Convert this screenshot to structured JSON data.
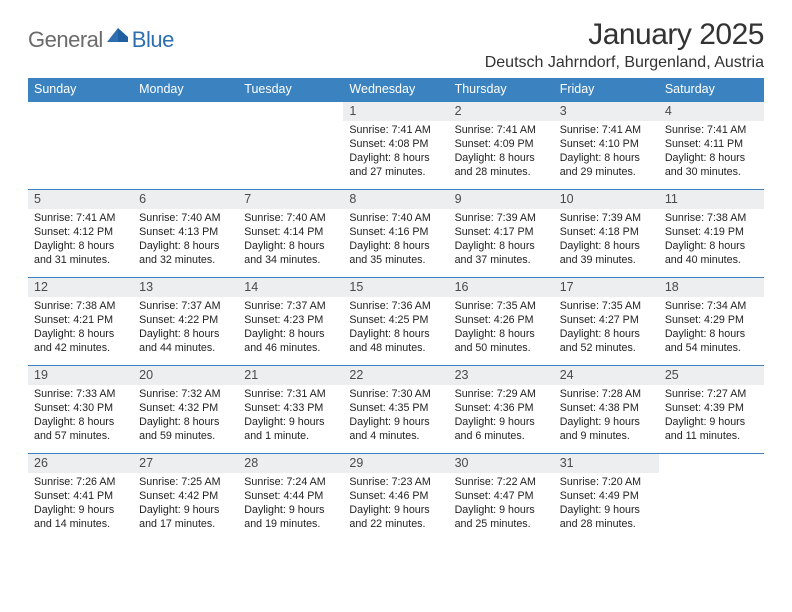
{
  "logo": {
    "word1": "General",
    "word2": "Blue"
  },
  "title": "January 2025",
  "location": "Deutsch Jahrndorf, Burgenland, Austria",
  "dow": [
    "Sunday",
    "Monday",
    "Tuesday",
    "Wednesday",
    "Thursday",
    "Friday",
    "Saturday"
  ],
  "colors": {
    "header_bg": "#3b83c0",
    "header_text": "#ffffff",
    "row_border": "#3b83c0",
    "daynum_bg": "#eceef0",
    "logo_gray": "#6b6b6b",
    "logo_blue": "#2f6fb0"
  },
  "weeks": [
    [
      {
        "n": "",
        "lines": [
          "",
          "",
          "",
          ""
        ]
      },
      {
        "n": "",
        "lines": [
          "",
          "",
          "",
          ""
        ]
      },
      {
        "n": "",
        "lines": [
          "",
          "",
          "",
          ""
        ]
      },
      {
        "n": "1",
        "lines": [
          "Sunrise: 7:41 AM",
          "Sunset: 4:08 PM",
          "Daylight: 8 hours",
          "and 27 minutes."
        ]
      },
      {
        "n": "2",
        "lines": [
          "Sunrise: 7:41 AM",
          "Sunset: 4:09 PM",
          "Daylight: 8 hours",
          "and 28 minutes."
        ]
      },
      {
        "n": "3",
        "lines": [
          "Sunrise: 7:41 AM",
          "Sunset: 4:10 PM",
          "Daylight: 8 hours",
          "and 29 minutes."
        ]
      },
      {
        "n": "4",
        "lines": [
          "Sunrise: 7:41 AM",
          "Sunset: 4:11 PM",
          "Daylight: 8 hours",
          "and 30 minutes."
        ]
      }
    ],
    [
      {
        "n": "5",
        "lines": [
          "Sunrise: 7:41 AM",
          "Sunset: 4:12 PM",
          "Daylight: 8 hours",
          "and 31 minutes."
        ]
      },
      {
        "n": "6",
        "lines": [
          "Sunrise: 7:40 AM",
          "Sunset: 4:13 PM",
          "Daylight: 8 hours",
          "and 32 minutes."
        ]
      },
      {
        "n": "7",
        "lines": [
          "Sunrise: 7:40 AM",
          "Sunset: 4:14 PM",
          "Daylight: 8 hours",
          "and 34 minutes."
        ]
      },
      {
        "n": "8",
        "lines": [
          "Sunrise: 7:40 AM",
          "Sunset: 4:16 PM",
          "Daylight: 8 hours",
          "and 35 minutes."
        ]
      },
      {
        "n": "9",
        "lines": [
          "Sunrise: 7:39 AM",
          "Sunset: 4:17 PM",
          "Daylight: 8 hours",
          "and 37 minutes."
        ]
      },
      {
        "n": "10",
        "lines": [
          "Sunrise: 7:39 AM",
          "Sunset: 4:18 PM",
          "Daylight: 8 hours",
          "and 39 minutes."
        ]
      },
      {
        "n": "11",
        "lines": [
          "Sunrise: 7:38 AM",
          "Sunset: 4:19 PM",
          "Daylight: 8 hours",
          "and 40 minutes."
        ]
      }
    ],
    [
      {
        "n": "12",
        "lines": [
          "Sunrise: 7:38 AM",
          "Sunset: 4:21 PM",
          "Daylight: 8 hours",
          "and 42 minutes."
        ]
      },
      {
        "n": "13",
        "lines": [
          "Sunrise: 7:37 AM",
          "Sunset: 4:22 PM",
          "Daylight: 8 hours",
          "and 44 minutes."
        ]
      },
      {
        "n": "14",
        "lines": [
          "Sunrise: 7:37 AM",
          "Sunset: 4:23 PM",
          "Daylight: 8 hours",
          "and 46 minutes."
        ]
      },
      {
        "n": "15",
        "lines": [
          "Sunrise: 7:36 AM",
          "Sunset: 4:25 PM",
          "Daylight: 8 hours",
          "and 48 minutes."
        ]
      },
      {
        "n": "16",
        "lines": [
          "Sunrise: 7:35 AM",
          "Sunset: 4:26 PM",
          "Daylight: 8 hours",
          "and 50 minutes."
        ]
      },
      {
        "n": "17",
        "lines": [
          "Sunrise: 7:35 AM",
          "Sunset: 4:27 PM",
          "Daylight: 8 hours",
          "and 52 minutes."
        ]
      },
      {
        "n": "18",
        "lines": [
          "Sunrise: 7:34 AM",
          "Sunset: 4:29 PM",
          "Daylight: 8 hours",
          "and 54 minutes."
        ]
      }
    ],
    [
      {
        "n": "19",
        "lines": [
          "Sunrise: 7:33 AM",
          "Sunset: 4:30 PM",
          "Daylight: 8 hours",
          "and 57 minutes."
        ]
      },
      {
        "n": "20",
        "lines": [
          "Sunrise: 7:32 AM",
          "Sunset: 4:32 PM",
          "Daylight: 8 hours",
          "and 59 minutes."
        ]
      },
      {
        "n": "21",
        "lines": [
          "Sunrise: 7:31 AM",
          "Sunset: 4:33 PM",
          "Daylight: 9 hours",
          "and 1 minute."
        ]
      },
      {
        "n": "22",
        "lines": [
          "Sunrise: 7:30 AM",
          "Sunset: 4:35 PM",
          "Daylight: 9 hours",
          "and 4 minutes."
        ]
      },
      {
        "n": "23",
        "lines": [
          "Sunrise: 7:29 AM",
          "Sunset: 4:36 PM",
          "Daylight: 9 hours",
          "and 6 minutes."
        ]
      },
      {
        "n": "24",
        "lines": [
          "Sunrise: 7:28 AM",
          "Sunset: 4:38 PM",
          "Daylight: 9 hours",
          "and 9 minutes."
        ]
      },
      {
        "n": "25",
        "lines": [
          "Sunrise: 7:27 AM",
          "Sunset: 4:39 PM",
          "Daylight: 9 hours",
          "and 11 minutes."
        ]
      }
    ],
    [
      {
        "n": "26",
        "lines": [
          "Sunrise: 7:26 AM",
          "Sunset: 4:41 PM",
          "Daylight: 9 hours",
          "and 14 minutes."
        ]
      },
      {
        "n": "27",
        "lines": [
          "Sunrise: 7:25 AM",
          "Sunset: 4:42 PM",
          "Daylight: 9 hours",
          "and 17 minutes."
        ]
      },
      {
        "n": "28",
        "lines": [
          "Sunrise: 7:24 AM",
          "Sunset: 4:44 PM",
          "Daylight: 9 hours",
          "and 19 minutes."
        ]
      },
      {
        "n": "29",
        "lines": [
          "Sunrise: 7:23 AM",
          "Sunset: 4:46 PM",
          "Daylight: 9 hours",
          "and 22 minutes."
        ]
      },
      {
        "n": "30",
        "lines": [
          "Sunrise: 7:22 AM",
          "Sunset: 4:47 PM",
          "Daylight: 9 hours",
          "and 25 minutes."
        ]
      },
      {
        "n": "31",
        "lines": [
          "Sunrise: 7:20 AM",
          "Sunset: 4:49 PM",
          "Daylight: 9 hours",
          "and 28 minutes."
        ]
      },
      {
        "n": "",
        "lines": [
          "",
          "",
          "",
          ""
        ]
      }
    ]
  ]
}
